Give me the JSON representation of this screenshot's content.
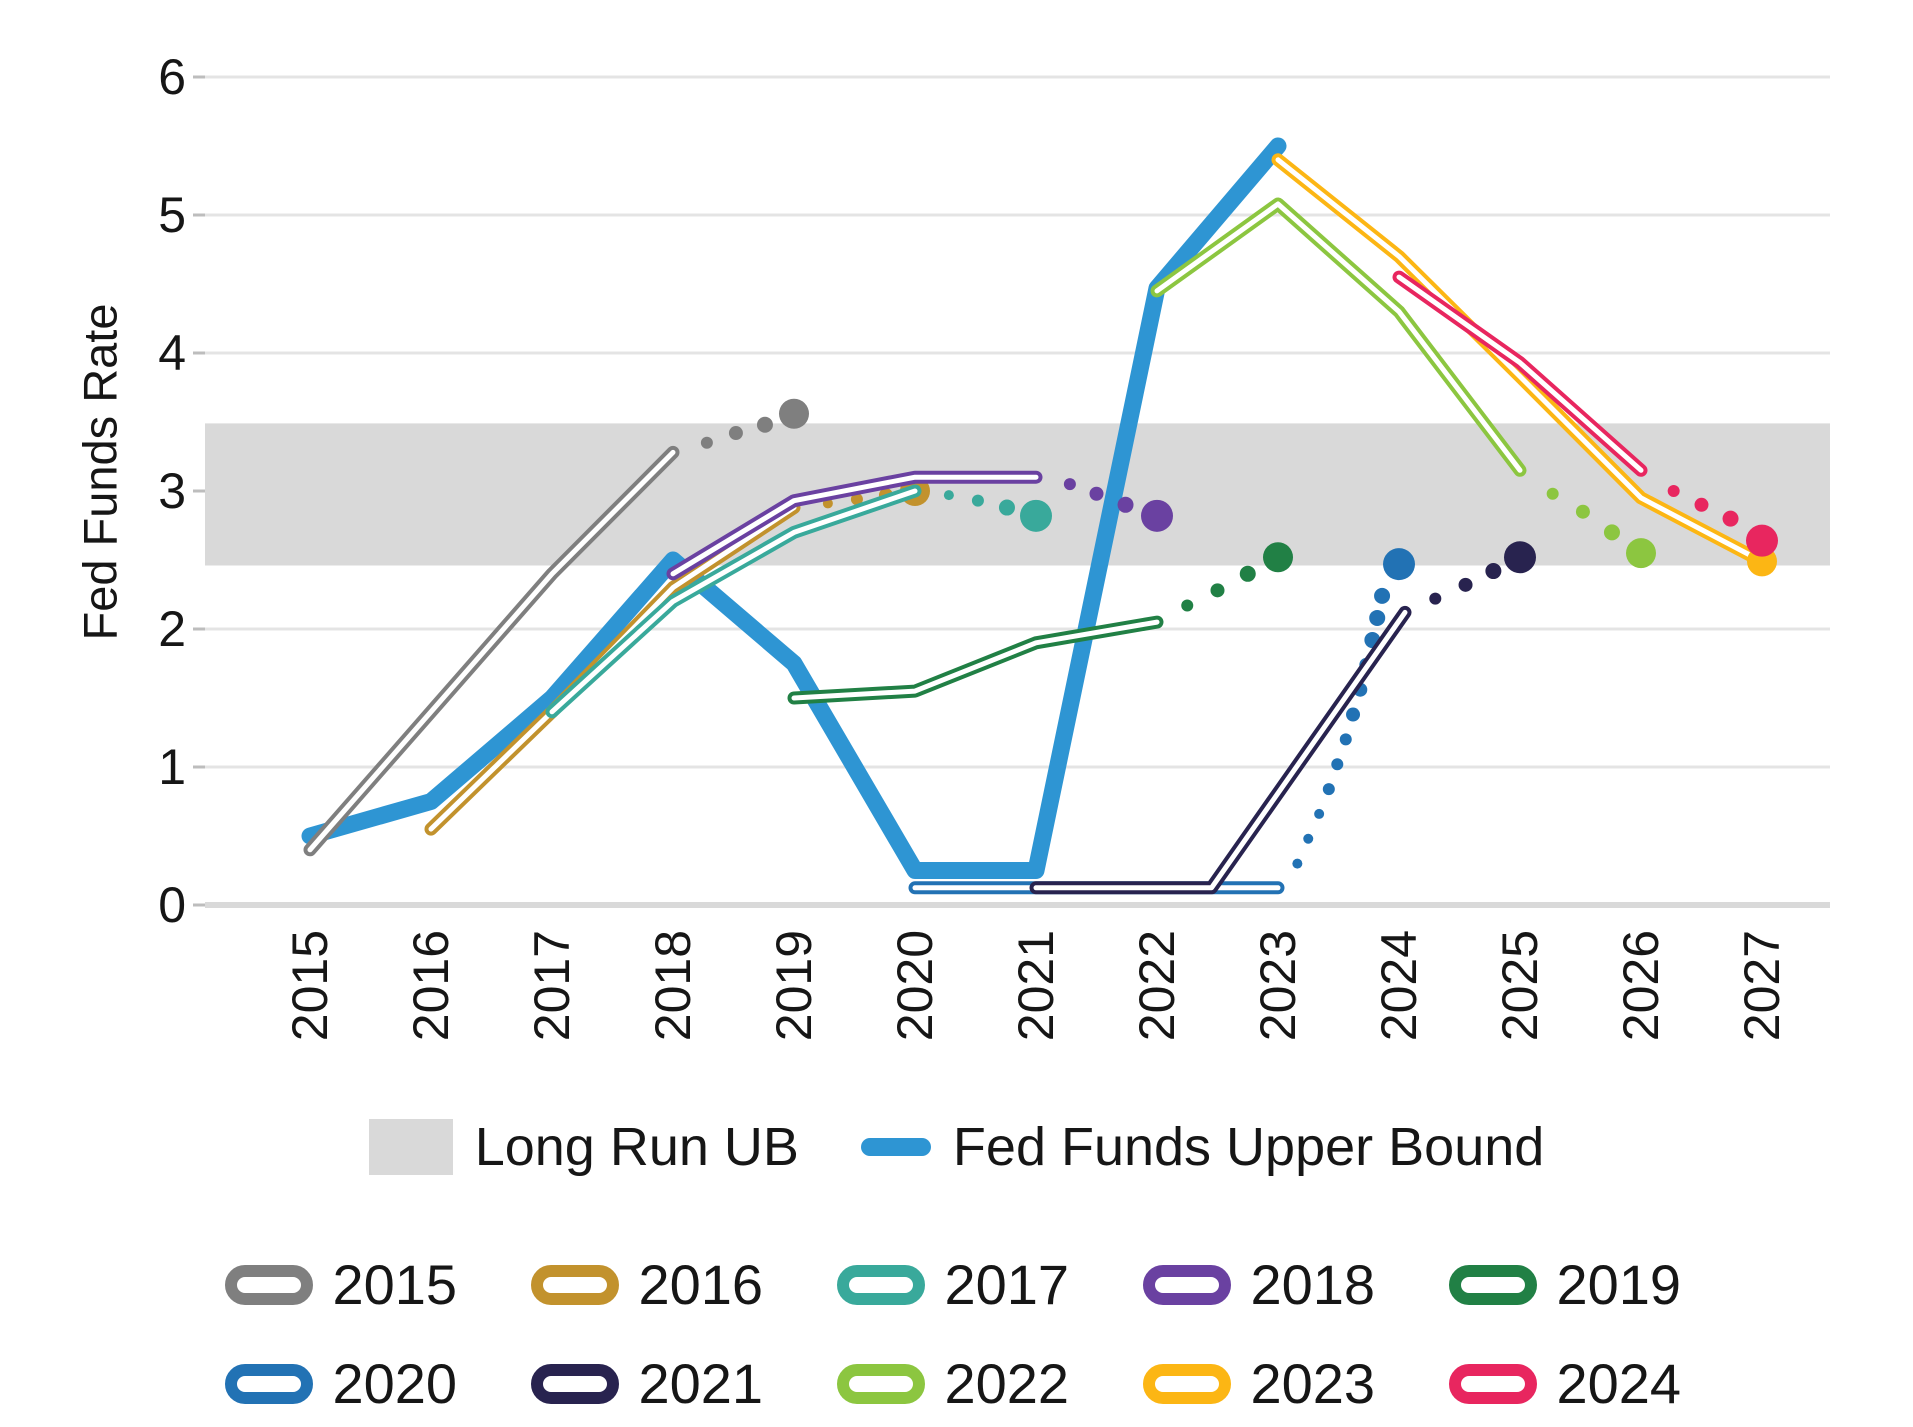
{
  "chart_data": {
    "type": "line",
    "title": "",
    "ylabel": "Fed Funds Rate",
    "xlabel": "",
    "x_ticks": [
      "2015",
      "2016",
      "2017",
      "2018",
      "2019",
      "2020",
      "2021",
      "2022",
      "2023",
      "2024",
      "2025",
      "2026",
      "2027"
    ],
    "y_ticks": [
      0,
      1,
      2,
      3,
      4,
      5,
      6
    ],
    "ylim": [
      0,
      6.3
    ],
    "grid": "horizontal",
    "long_run_band": {
      "label": "Long Run UB",
      "color": "#D9D9D9",
      "from": 2.46,
      "to": 3.49
    },
    "actual": {
      "label": "Fed Funds Upper Bound",
      "color": "#2E95D3",
      "points": [
        [
          2015,
          0.5
        ],
        [
          2016,
          0.75
        ],
        [
          2017,
          1.5
        ],
        [
          2018,
          2.5
        ],
        [
          2019,
          1.75
        ],
        [
          2020,
          0.25
        ],
        [
          2021,
          0.25
        ],
        [
          2022,
          4.47
        ],
        [
          2023,
          5.5
        ]
      ]
    },
    "projection_series": [
      {
        "name": "2015",
        "color": "#7F7F7F",
        "solid": [
          [
            2015,
            0.4
          ],
          [
            2016,
            1.4
          ],
          [
            2017,
            2.4
          ],
          [
            2018,
            3.28
          ]
        ],
        "dots": [
          [
            2018.28,
            3.35,
            6
          ],
          [
            2018.52,
            3.42,
            7
          ],
          [
            2018.76,
            3.48,
            8
          ]
        ],
        "long_run_dot": [
          2019,
          3.56,
          15
        ]
      },
      {
        "name": "2016",
        "color": "#C2922D",
        "solid": [
          [
            2016,
            0.55
          ],
          [
            2017,
            1.4
          ],
          [
            2018,
            2.3
          ],
          [
            2019,
            2.88
          ]
        ],
        "dots": [
          [
            2019.28,
            2.91,
            5
          ],
          [
            2019.52,
            2.94,
            6
          ],
          [
            2019.76,
            2.97,
            7
          ]
        ],
        "long_run_dot": [
          2020,
          3.0,
          15
        ]
      },
      {
        "name": "2017",
        "color": "#39A99B",
        "solid": [
          [
            2017,
            1.4
          ],
          [
            2018,
            2.2
          ],
          [
            2019,
            2.7
          ],
          [
            2020,
            3.0
          ]
        ],
        "dots": [
          [
            2020.28,
            2.97,
            5
          ],
          [
            2020.52,
            2.93,
            6
          ],
          [
            2020.76,
            2.88,
            8
          ]
        ],
        "long_run_dot": [
          2021,
          2.82,
          16
        ]
      },
      {
        "name": "2018",
        "color": "#6A41A1",
        "solid": [
          [
            2018,
            2.4
          ],
          [
            2019,
            2.93
          ],
          [
            2020,
            3.1
          ],
          [
            2021,
            3.1
          ]
        ],
        "dots": [
          [
            2021.28,
            3.05,
            6
          ],
          [
            2021.5,
            2.98,
            7
          ],
          [
            2021.74,
            2.9,
            8
          ]
        ],
        "long_run_dot": [
          2022,
          2.82,
          16
        ]
      },
      {
        "name": "2019",
        "color": "#218045",
        "solid": [
          [
            2019,
            1.5
          ],
          [
            2020,
            1.55
          ],
          [
            2021,
            1.9
          ],
          [
            2022,
            2.05
          ]
        ],
        "dots": [
          [
            2022.25,
            2.17,
            6
          ],
          [
            2022.5,
            2.28,
            7
          ],
          [
            2022.75,
            2.4,
            8
          ]
        ],
        "long_run_dot": [
          2023,
          2.52,
          15
        ]
      },
      {
        "name": "2020",
        "color": "#2272B4",
        "solid": [
          [
            2020,
            0.125
          ],
          [
            2023,
            0.125
          ]
        ],
        "dots": [
          [
            2023.16,
            0.3,
            5
          ],
          [
            2023.25,
            0.48,
            5
          ],
          [
            2023.34,
            0.66,
            5
          ],
          [
            2023.42,
            0.84,
            6
          ],
          [
            2023.49,
            1.02,
            6
          ],
          [
            2023.56,
            1.2,
            6
          ],
          [
            2023.62,
            1.38,
            7
          ],
          [
            2023.68,
            1.56,
            7
          ],
          [
            2023.73,
            1.74,
            7
          ],
          [
            2023.78,
            1.92,
            8
          ],
          [
            2023.82,
            2.08,
            8
          ],
          [
            2023.86,
            2.24,
            8
          ]
        ],
        "long_run_dot": [
          2024,
          2.47,
          16
        ]
      },
      {
        "name": "2021",
        "color": "#28234F",
        "solid": [
          [
            2021,
            0.125
          ],
          [
            2022.45,
            0.125
          ],
          [
            2024.05,
            2.12
          ]
        ],
        "dots": [
          [
            2024.3,
            2.22,
            6
          ],
          [
            2024.55,
            2.32,
            7
          ],
          [
            2024.78,
            2.42,
            8
          ]
        ],
        "long_run_dot": [
          2025,
          2.52,
          16
        ]
      },
      {
        "name": "2022",
        "color": "#8CC640",
        "solid": [
          [
            2022,
            4.45
          ],
          [
            2023,
            5.08
          ],
          [
            2024,
            4.3
          ],
          [
            2025,
            3.15
          ]
        ],
        "dots": [
          [
            2025.27,
            2.98,
            6
          ],
          [
            2025.52,
            2.85,
            7
          ],
          [
            2025.76,
            2.7,
            8
          ]
        ],
        "long_run_dot": [
          2026,
          2.55,
          15
        ]
      },
      {
        "name": "2023",
        "color": "#FCB614",
        "solid": [
          [
            2023,
            5.4
          ],
          [
            2024,
            4.7
          ],
          [
            2025,
            3.83
          ],
          [
            2026,
            2.95
          ],
          [
            2027,
            2.49
          ]
        ],
        "dots": [],
        "long_run_dot": [
          2027,
          2.49,
          15
        ]
      },
      {
        "name": "2024",
        "color": "#E8265F",
        "solid": [
          [
            2024,
            4.55
          ],
          [
            2025,
            3.93
          ],
          [
            2026,
            3.15
          ]
        ],
        "dots": [
          [
            2026.27,
            3.0,
            6
          ],
          [
            2026.5,
            2.9,
            7
          ],
          [
            2026.74,
            2.8,
            8
          ]
        ],
        "long_run_dot": [
          2027,
          2.64,
          16
        ]
      }
    ]
  },
  "legend": {
    "long_run_label": "Long Run UB",
    "actual_label": "Fed Funds Upper Bound",
    "years": [
      {
        "label": "2015",
        "color": "#7F7F7F"
      },
      {
        "label": "2016",
        "color": "#C2922D"
      },
      {
        "label": "2017",
        "color": "#39A99B"
      },
      {
        "label": "2018",
        "color": "#6A41A1"
      },
      {
        "label": "2019",
        "color": "#218045"
      },
      {
        "label": "2020",
        "color": "#2272B4"
      },
      {
        "label": "2021",
        "color": "#28234F"
      },
      {
        "label": "2022",
        "color": "#8CC640"
      },
      {
        "label": "2023",
        "color": "#FCB614"
      },
      {
        "label": "2024",
        "color": "#E8265F"
      }
    ]
  }
}
